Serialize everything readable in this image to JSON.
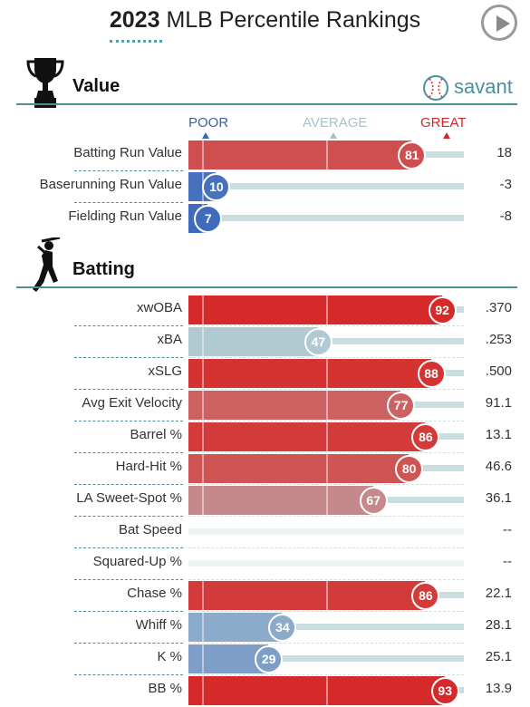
{
  "title": {
    "year": "2023",
    "text": "MLB Percentile Rankings"
  },
  "play_icon": "play-circle-icon",
  "brand": {
    "text": "savant",
    "icon": "baseball-icon"
  },
  "scale": {
    "poor": "POOR",
    "average": "AVERAGE",
    "great": "GREAT"
  },
  "colors": {
    "great": "#d62a2a",
    "poor": "#3a65ba",
    "average": "#c9dee0",
    "accent": "#4b8f93"
  },
  "sections": [
    {
      "name": "Value",
      "icon": "trophy-icon"
    },
    {
      "name": "Batting",
      "icon": "batter-icon"
    }
  ],
  "chart_data": {
    "type": "bar",
    "orientation": "horizontal",
    "xlim": [
      0,
      100
    ],
    "groups": [
      {
        "section": "Value",
        "metrics": [
          {
            "name": "Batting Run Value",
            "percentile": 81,
            "value": "18"
          },
          {
            "name": "Baserunning Run Value",
            "percentile": 10,
            "value": "-3"
          },
          {
            "name": "Fielding Run Value",
            "percentile": 7,
            "value": "-8"
          }
        ]
      },
      {
        "section": "Batting",
        "metrics": [
          {
            "name": "xwOBA",
            "percentile": 92,
            "value": ".370"
          },
          {
            "name": "xBA",
            "percentile": 47,
            "value": ".253"
          },
          {
            "name": "xSLG",
            "percentile": 88,
            "value": ".500"
          },
          {
            "name": "Avg Exit Velocity",
            "percentile": 77,
            "value": "91.1"
          },
          {
            "name": "Barrel %",
            "percentile": 86,
            "value": "13.1"
          },
          {
            "name": "Hard-Hit %",
            "percentile": 80,
            "value": "46.6"
          },
          {
            "name": "LA Sweet-Spot %",
            "percentile": 67,
            "value": "36.1"
          },
          {
            "name": "Bat Speed",
            "percentile": null,
            "value": "--"
          },
          {
            "name": "Squared-Up %",
            "percentile": null,
            "value": "--"
          },
          {
            "name": "Chase %",
            "percentile": 86,
            "value": "22.1"
          },
          {
            "name": "Whiff %",
            "percentile": 34,
            "value": "28.1"
          },
          {
            "name": "K %",
            "percentile": 29,
            "value": "25.1"
          },
          {
            "name": "BB %",
            "percentile": 93,
            "value": "13.9"
          }
        ]
      }
    ]
  }
}
